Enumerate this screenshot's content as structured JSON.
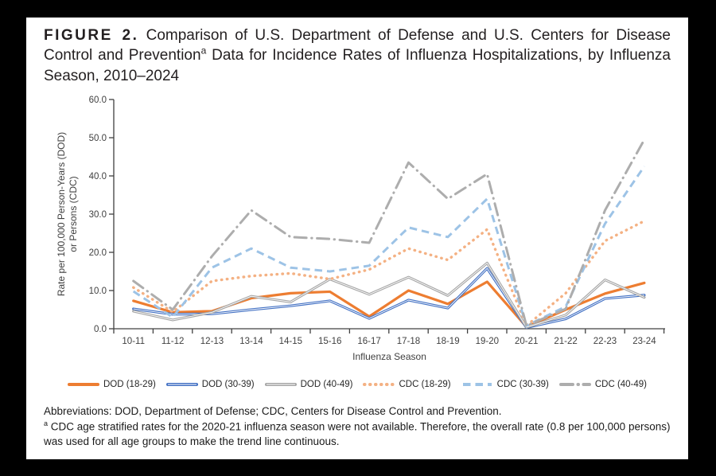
{
  "figure": {
    "label": "FIGURE 2.",
    "title_part1": "Comparison of U.S. Department of Defense and U.S. Centers for Disease Control and Prevention",
    "title_sup": "a",
    "title_part2": "Data for Incidence Rates of Influenza Hospitalizations, by Influenza Season, 2010–2024"
  },
  "chart_data": {
    "type": "line",
    "xlabel": "Influenza Season",
    "ylabel": "Rate per 100,000 Person-Years (DOD) or Persons (CDC)",
    "ylabel_lines": [
      "Rate per 100,000 Person-Years (DOD)",
      "or Persons (CDC)"
    ],
    "ylim": [
      0,
      60
    ],
    "ytick_step": 10,
    "ytick_labels": [
      "0.0",
      "10.0",
      "20.0",
      "30.0",
      "40.0",
      "50.0",
      "60.0"
    ],
    "grid": false,
    "legend_position": "bottom",
    "categories": [
      "10-11",
      "11-12",
      "12-13",
      "13-14",
      "14-15",
      "15-16",
      "16-17",
      "17-18",
      "18-19",
      "19-20",
      "20-21",
      "21-22",
      "22-23",
      "23-24"
    ],
    "series": [
      {
        "name": "DOD (18-29)",
        "style": "solid",
        "inner_line": false,
        "color": "#ED7D31",
        "values": [
          7.3,
          4.3,
          4.6,
          8.0,
          9.3,
          9.7,
          3.2,
          10.0,
          6.5,
          12.3,
          0.5,
          5.0,
          9.2,
          12.0
        ]
      },
      {
        "name": "DOD (30-39)",
        "style": "solid",
        "inner_line": true,
        "color": "#4472C4",
        "values": [
          5.2,
          3.8,
          3.9,
          5.0,
          6.0,
          7.3,
          2.7,
          7.5,
          5.4,
          15.8,
          0.3,
          2.6,
          7.9,
          8.8
        ]
      },
      {
        "name": "DOD (40-49)",
        "style": "solid",
        "inner_line": true,
        "color": "#A6A6A6",
        "values": [
          4.6,
          2.3,
          4.3,
          8.5,
          7.0,
          13.0,
          9.0,
          13.5,
          8.7,
          17.2,
          0.4,
          3.6,
          12.8,
          8.2
        ]
      },
      {
        "name": "CDC (18-29)",
        "style": "dotted",
        "inner_line": false,
        "color": "#F4B183",
        "values": [
          10.8,
          4.4,
          12.5,
          13.8,
          14.5,
          13.0,
          15.5,
          21.0,
          18.0,
          26.0,
          0.8,
          9.3,
          23.0,
          28.2
        ]
      },
      {
        "name": "CDC (30-39)",
        "style": "dashed",
        "inner_line": false,
        "color": "#9DC3E6",
        "values": [
          9.8,
          3.0,
          16.0,
          21.0,
          16.0,
          15.0,
          16.5,
          26.5,
          24.0,
          34.0,
          0.8,
          5.8,
          27.5,
          42.5
        ]
      },
      {
        "name": "CDC (40-49)",
        "style": "dashdot",
        "inner_line": false,
        "color": "#ADADAD",
        "values": [
          12.5,
          5.0,
          19.0,
          31.0,
          24.0,
          23.5,
          22.5,
          43.5,
          34.0,
          40.5,
          0.8,
          5.2,
          31.0,
          49.5
        ]
      }
    ]
  },
  "footnotes": {
    "abbreviations": "Abbreviations: DOD, Department of Defense; CDC, Centers for Disease Control and Prevention.",
    "note_marker": "a",
    "note_text": " CDC age stratified rates for the 2020-21 influenza season were not available. Therefore, the overall rate (0.8 per 100,000 persons) was used for all age groups to make the trend line continuous."
  }
}
